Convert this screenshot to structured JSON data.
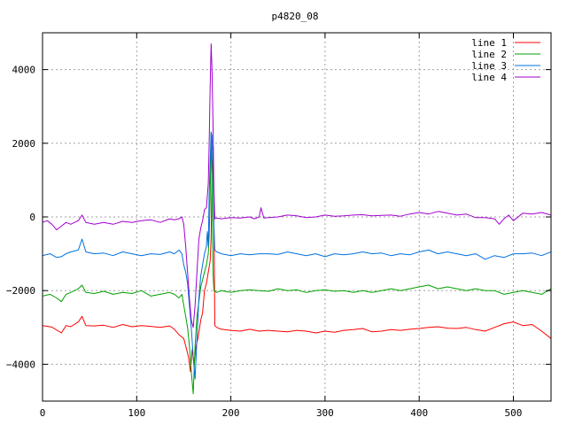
{
  "chart_data": {
    "type": "line",
    "title": "p4820_08",
    "xlabel": "",
    "ylabel": "",
    "xlim": [
      0,
      540
    ],
    "ylim": [
      -5000,
      5000
    ],
    "xticks": [
      0,
      100,
      200,
      300,
      400,
      500
    ],
    "yticks": [
      -4000,
      -2000,
      0,
      2000,
      4000
    ],
    "grid": true,
    "legend_position": "top-right",
    "series": [
      {
        "name": "line 1",
        "color": "#ff0000",
        "points": [
          [
            0,
            -2950
          ],
          [
            10,
            -2990
          ],
          [
            20,
            -3150
          ],
          [
            25,
            -2950
          ],
          [
            30,
            -2980
          ],
          [
            38,
            -2850
          ],
          [
            42,
            -2700
          ],
          [
            46,
            -2950
          ],
          [
            55,
            -2960
          ],
          [
            65,
            -2940
          ],
          [
            75,
            -3000
          ],
          [
            85,
            -2920
          ],
          [
            95,
            -2980
          ],
          [
            105,
            -2950
          ],
          [
            115,
            -2970
          ],
          [
            125,
            -3000
          ],
          [
            135,
            -2960
          ],
          [
            140,
            -3050
          ],
          [
            145,
            -3200
          ],
          [
            150,
            -3300
          ],
          [
            152,
            -3500
          ],
          [
            155,
            -3800
          ],
          [
            157,
            -4200
          ],
          [
            159,
            -3600
          ],
          [
            161,
            -4000
          ],
          [
            163,
            -3500
          ],
          [
            165,
            -3300
          ],
          [
            168,
            -2800
          ],
          [
            170,
            -2600
          ],
          [
            172,
            -2000
          ],
          [
            174,
            -1800
          ],
          [
            176,
            -1500
          ],
          [
            178,
            -1200
          ],
          [
            179,
            -600
          ],
          [
            180,
            1200
          ],
          [
            181,
            1900
          ],
          [
            182,
            -200
          ],
          [
            183,
            -2950
          ],
          [
            185,
            -3000
          ],
          [
            190,
            -3050
          ],
          [
            200,
            -3080
          ],
          [
            210,
            -3100
          ],
          [
            220,
            -3050
          ],
          [
            230,
            -3100
          ],
          [
            240,
            -3080
          ],
          [
            250,
            -3100
          ],
          [
            260,
            -3120
          ],
          [
            270,
            -3080
          ],
          [
            280,
            -3100
          ],
          [
            290,
            -3150
          ],
          [
            300,
            -3100
          ],
          [
            310,
            -3130
          ],
          [
            320,
            -3080
          ],
          [
            330,
            -3060
          ],
          [
            340,
            -3030
          ],
          [
            350,
            -3120
          ],
          [
            360,
            -3100
          ],
          [
            370,
            -3060
          ],
          [
            380,
            -3080
          ],
          [
            390,
            -3050
          ],
          [
            400,
            -3030
          ],
          [
            410,
            -3000
          ],
          [
            420,
            -2980
          ],
          [
            430,
            -3020
          ],
          [
            440,
            -3030
          ],
          [
            450,
            -3000
          ],
          [
            460,
            -3060
          ],
          [
            470,
            -3100
          ],
          [
            480,
            -3000
          ],
          [
            490,
            -2900
          ],
          [
            500,
            -2850
          ],
          [
            510,
            -2950
          ],
          [
            520,
            -2920
          ],
          [
            530,
            -3100
          ],
          [
            540,
            -3300
          ]
        ]
      },
      {
        "name": "line 2",
        "color": "#00a000",
        "points": [
          [
            0,
            -2150
          ],
          [
            8,
            -2100
          ],
          [
            15,
            -2200
          ],
          [
            20,
            -2300
          ],
          [
            25,
            -2100
          ],
          [
            30,
            -2050
          ],
          [
            38,
            -1950
          ],
          [
            42,
            -1850
          ],
          [
            46,
            -2050
          ],
          [
            55,
            -2080
          ],
          [
            65,
            -2020
          ],
          [
            75,
            -2100
          ],
          [
            85,
            -2050
          ],
          [
            95,
            -2080
          ],
          [
            105,
            -2000
          ],
          [
            115,
            -2150
          ],
          [
            125,
            -2100
          ],
          [
            135,
            -2050
          ],
          [
            140,
            -2100
          ],
          [
            145,
            -2200
          ],
          [
            148,
            -2100
          ],
          [
            150,
            -2400
          ],
          [
            152,
            -2700
          ],
          [
            154,
            -3000
          ],
          [
            156,
            -3500
          ],
          [
            158,
            -4200
          ],
          [
            160,
            -4800
          ],
          [
            162,
            -3500
          ],
          [
            164,
            -2700
          ],
          [
            166,
            -2300
          ],
          [
            168,
            -1900
          ],
          [
            170,
            -1700
          ],
          [
            172,
            -1500
          ],
          [
            174,
            -1300
          ],
          [
            176,
            -1000
          ],
          [
            177,
            -500
          ],
          [
            178,
            500
          ],
          [
            179,
            2300
          ],
          [
            180,
            900
          ],
          [
            181,
            -1500
          ],
          [
            182,
            -2000
          ],
          [
            185,
            -2050
          ],
          [
            190,
            -2000
          ],
          [
            200,
            -2050
          ],
          [
            210,
            -2000
          ],
          [
            220,
            -1980
          ],
          [
            230,
            -2000
          ],
          [
            240,
            -2020
          ],
          [
            250,
            -1950
          ],
          [
            260,
            -2000
          ],
          [
            270,
            -1980
          ],
          [
            280,
            -2050
          ],
          [
            290,
            -2000
          ],
          [
            300,
            -1980
          ],
          [
            310,
            -2020
          ],
          [
            320,
            -2000
          ],
          [
            330,
            -2050
          ],
          [
            340,
            -2000
          ],
          [
            350,
            -2050
          ],
          [
            360,
            -2000
          ],
          [
            370,
            -1950
          ],
          [
            380,
            -2000
          ],
          [
            390,
            -1950
          ],
          [
            400,
            -1900
          ],
          [
            410,
            -1850
          ],
          [
            420,
            -1950
          ],
          [
            430,
            -1900
          ],
          [
            440,
            -1950
          ],
          [
            450,
            -2000
          ],
          [
            460,
            -1950
          ],
          [
            470,
            -2000
          ],
          [
            480,
            -2000
          ],
          [
            490,
            -2100
          ],
          [
            500,
            -2050
          ],
          [
            510,
            -2000
          ],
          [
            520,
            -2050
          ],
          [
            530,
            -2100
          ],
          [
            540,
            -1950
          ]
        ]
      },
      {
        "name": "line 3",
        "color": "#0070e0",
        "points": [
          [
            0,
            -1050
          ],
          [
            8,
            -1000
          ],
          [
            15,
            -1100
          ],
          [
            20,
            -1080
          ],
          [
            25,
            -1000
          ],
          [
            30,
            -950
          ],
          [
            38,
            -900
          ],
          [
            42,
            -600
          ],
          [
            46,
            -950
          ],
          [
            55,
            -1000
          ],
          [
            65,
            -980
          ],
          [
            75,
            -1050
          ],
          [
            85,
            -950
          ],
          [
            95,
            -1000
          ],
          [
            105,
            -1050
          ],
          [
            115,
            -1000
          ],
          [
            125,
            -1020
          ],
          [
            135,
            -950
          ],
          [
            140,
            -1000
          ],
          [
            145,
            -900
          ],
          [
            148,
            -1000
          ],
          [
            150,
            -1300
          ],
          [
            152,
            -1500
          ],
          [
            154,
            -1800
          ],
          [
            156,
            -2400
          ],
          [
            158,
            -3000
          ],
          [
            160,
            -3800
          ],
          [
            162,
            -4400
          ],
          [
            164,
            -3300
          ],
          [
            166,
            -2200
          ],
          [
            168,
            -1600
          ],
          [
            170,
            -1300
          ],
          [
            172,
            -1000
          ],
          [
            174,
            -800
          ],
          [
            175,
            -400
          ],
          [
            176,
            -800
          ],
          [
            177,
            600
          ],
          [
            178,
            1500
          ],
          [
            179,
            2300
          ],
          [
            180,
            2200
          ],
          [
            181,
            1300
          ],
          [
            182,
            -300
          ],
          [
            183,
            -900
          ],
          [
            185,
            -950
          ],
          [
            190,
            -1000
          ],
          [
            200,
            -1050
          ],
          [
            210,
            -1000
          ],
          [
            220,
            -1030
          ],
          [
            230,
            -1000
          ],
          [
            240,
            -1000
          ],
          [
            250,
            -1020
          ],
          [
            260,
            -950
          ],
          [
            270,
            -1000
          ],
          [
            280,
            -1050
          ],
          [
            290,
            -1000
          ],
          [
            300,
            -1080
          ],
          [
            310,
            -1000
          ],
          [
            320,
            -1030
          ],
          [
            330,
            -1000
          ],
          [
            340,
            -950
          ],
          [
            350,
            -1000
          ],
          [
            360,
            -980
          ],
          [
            370,
            -1050
          ],
          [
            380,
            -1000
          ],
          [
            390,
            -1030
          ],
          [
            400,
            -950
          ],
          [
            410,
            -900
          ],
          [
            420,
            -1000
          ],
          [
            430,
            -950
          ],
          [
            440,
            -1000
          ],
          [
            450,
            -1050
          ],
          [
            460,
            -1000
          ],
          [
            470,
            -1150
          ],
          [
            480,
            -1050
          ],
          [
            490,
            -1100
          ],
          [
            500,
            -1000
          ],
          [
            510,
            -1000
          ],
          [
            520,
            -980
          ],
          [
            530,
            -1050
          ],
          [
            540,
            -950
          ]
        ]
      },
      {
        "name": "line 4",
        "color": "#a000d0",
        "points": [
          [
            0,
            -150
          ],
          [
            5,
            -100
          ],
          [
            10,
            -200
          ],
          [
            15,
            -350
          ],
          [
            20,
            -250
          ],
          [
            25,
            -150
          ],
          [
            30,
            -200
          ],
          [
            38,
            -100
          ],
          [
            42,
            50
          ],
          [
            46,
            -150
          ],
          [
            55,
            -200
          ],
          [
            65,
            -150
          ],
          [
            75,
            -200
          ],
          [
            85,
            -120
          ],
          [
            95,
            -150
          ],
          [
            105,
            -100
          ],
          [
            115,
            -80
          ],
          [
            125,
            -150
          ],
          [
            135,
            -50
          ],
          [
            140,
            -80
          ],
          [
            145,
            -50
          ],
          [
            148,
            0
          ],
          [
            150,
            -200
          ],
          [
            152,
            -800
          ],
          [
            154,
            -1500
          ],
          [
            156,
            -2200
          ],
          [
            158,
            -2800
          ],
          [
            160,
            -3000
          ],
          [
            162,
            -2400
          ],
          [
            164,
            -1500
          ],
          [
            166,
            -600
          ],
          [
            168,
            -300
          ],
          [
            170,
            -100
          ],
          [
            172,
            200
          ],
          [
            174,
            250
          ],
          [
            176,
            900
          ],
          [
            177,
            2000
          ],
          [
            178,
            3500
          ],
          [
            179,
            4700
          ],
          [
            180,
            4000
          ],
          [
            181,
            2600
          ],
          [
            182,
            700
          ],
          [
            183,
            -50
          ],
          [
            185,
            -30
          ],
          [
            190,
            -50
          ],
          [
            200,
            -20
          ],
          [
            210,
            -30
          ],
          [
            220,
            0
          ],
          [
            225,
            -50
          ],
          [
            230,
            0
          ],
          [
            232,
            250
          ],
          [
            235,
            -30
          ],
          [
            240,
            -20
          ],
          [
            250,
            0
          ],
          [
            260,
            50
          ],
          [
            270,
            30
          ],
          [
            280,
            -20
          ],
          [
            290,
            0
          ],
          [
            300,
            50
          ],
          [
            310,
            20
          ],
          [
            320,
            30
          ],
          [
            330,
            50
          ],
          [
            340,
            60
          ],
          [
            350,
            30
          ],
          [
            360,
            40
          ],
          [
            370,
            50
          ],
          [
            380,
            20
          ],
          [
            390,
            80
          ],
          [
            400,
            120
          ],
          [
            410,
            80
          ],
          [
            420,
            150
          ],
          [
            430,
            100
          ],
          [
            440,
            50
          ],
          [
            450,
            80
          ],
          [
            460,
            -20
          ],
          [
            470,
            -20
          ],
          [
            480,
            -50
          ],
          [
            485,
            -200
          ],
          [
            490,
            -50
          ],
          [
            495,
            50
          ],
          [
            500,
            -100
          ],
          [
            510,
            100
          ],
          [
            520,
            80
          ],
          [
            530,
            120
          ],
          [
            540,
            50
          ]
        ]
      }
    ]
  }
}
